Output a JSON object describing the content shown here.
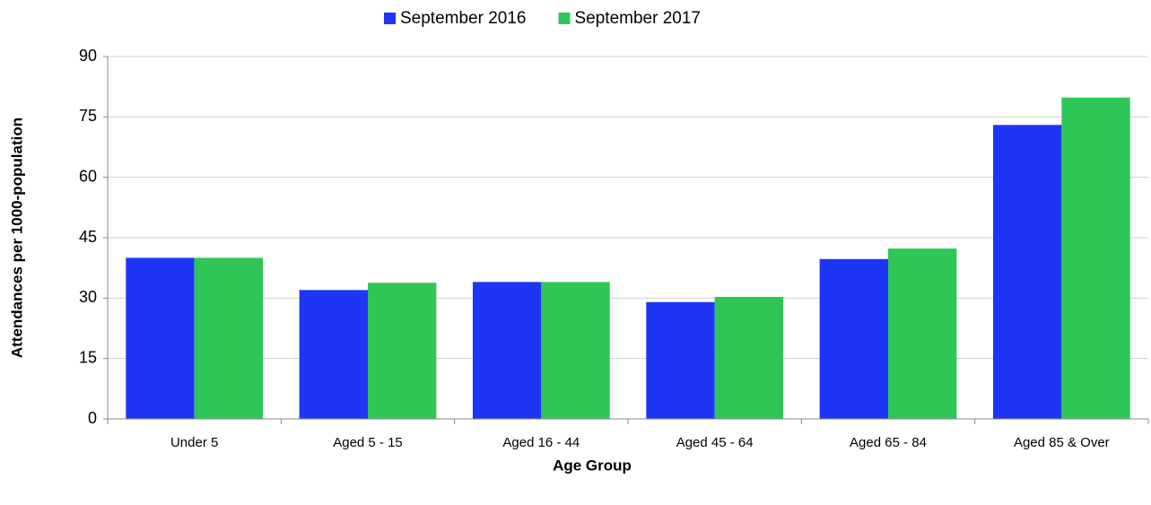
{
  "chart_data": {
    "type": "bar",
    "categories": [
      "Under 5",
      "Aged 5 - 15",
      "Aged 16 - 44",
      "Aged 45 - 64",
      "Aged 65 - 84",
      "Aged 85 & Over"
    ],
    "series": [
      {
        "name": "September 2016",
        "color": "#1f35f5",
        "values": [
          40,
          32,
          34,
          29,
          39.7,
          73
        ]
      },
      {
        "name": "September 2017",
        "color": "#2ec757",
        "values": [
          40,
          33.8,
          34,
          30.3,
          42.3,
          79.8
        ]
      }
    ],
    "ylim": [
      0,
      90
    ],
    "yticks": [
      0,
      15,
      30,
      45,
      60,
      75,
      90
    ],
    "grid": true,
    "xlabel": "Age Group",
    "ylabel": "Attendances per 1000-population",
    "legend": "top"
  }
}
